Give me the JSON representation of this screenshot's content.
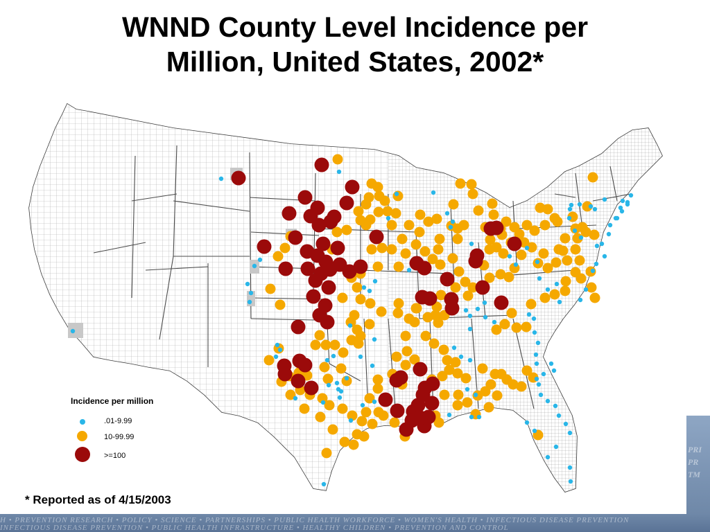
{
  "title": {
    "line1": "WNND County Level Incidence per",
    "line2": "Million, United States, 2002*"
  },
  "legend": {
    "title": "Incidence per million",
    "items": [
      {
        "label": ".01-9.99",
        "color": "#29b6e8",
        "class": "low"
      },
      {
        "label": "10-99.99",
        "color": "#f5a800",
        "class": "mid"
      },
      {
        "label": ">=100",
        "color": "#9b0a0a",
        "class": "high"
      }
    ]
  },
  "footnote": "* Reported as of 4/15/2003",
  "banner": {
    "line1": "H • PREVENTION RESEARCH • POLICY • SCIENCE • PARTNERSHIPS • PUBLIC HEALTH WORKFORCE • WOMEN'S HEALTH • INFECTIOUS DISEASE PREVENTION",
    "line2": "INFECTIOUS DISEASE PREVENTION • PUBLIC HEALTH INFRASTRUCTURE • HEALTHY CHILDREN • PREVENTION AND CONTROL"
  },
  "side_panel": {
    "lines": [
      "PRI",
      "PR",
      "TM"
    ]
  },
  "colors": {
    "land": "#ffffff",
    "county_lines": "#9a9a9a",
    "state_lines": "#4a4a4a",
    "highlight_county": "#c8c8c8",
    "low": "#29b6e8",
    "mid": "#f5a800",
    "high": "#9b0a0a"
  }
}
